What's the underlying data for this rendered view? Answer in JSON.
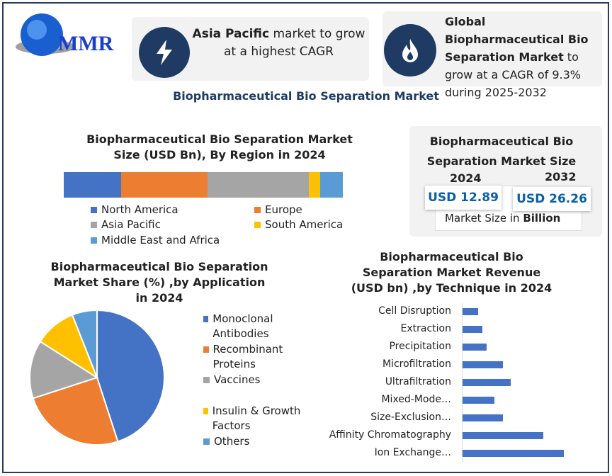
{
  "logo": {
    "text": "MMR"
  },
  "callout1": {
    "bold": "Asia Pacific",
    "rest": " market to grow at a highest CAGR",
    "icon": "lightning-icon"
  },
  "callout2": {
    "bold": "Global Biopharmaceutical Bio Separation Market",
    "rest": " to grow at a CAGR of 9.3% during 2025-2032",
    "icon": "flame-icon"
  },
  "main_title": "Biopharmaceutical Bio Separation Market",
  "size_box": {
    "title": "Biopharmaceutical Bio Separation Market Size",
    "year1": "2024",
    "year2": "2032",
    "value1": "USD 12.89",
    "value2": "USD 26.26",
    "unit_label": "Market Size in ",
    "unit_bold": "Billion"
  },
  "colors": {
    "blue": "#4472c4",
    "orange": "#ed7d31",
    "gray": "#a5a5a5",
    "yellow": "#ffc000",
    "lightblue": "#5b9bd5",
    "navy": "#1f3b64"
  },
  "chart_data": [
    {
      "type": "bar",
      "stacked": true,
      "title": "Biopharmaceutical Bio Separation Market Size (USD Bn), By Region in 2024",
      "categories": [
        "North America",
        "Europe",
        "Asia Pacific",
        "South America",
        "Middle East and Africa"
      ],
      "values": [
        20.6,
        31.0,
        36.3,
        4.0,
        8.1
      ],
      "unit": "% share (estimated)",
      "legend": "bottom"
    },
    {
      "type": "pie",
      "title": "Biopharmaceutical Bio Separation Market Share (%) ,by Application in 2024",
      "categories": [
        "Monoclonal Antibodies",
        "Recombinant Proteins",
        "Vaccines",
        "Insulin & Growth Factors",
        "Others"
      ],
      "values": [
        45,
        25,
        14,
        10,
        6
      ],
      "legend": "right"
    },
    {
      "type": "bar",
      "orientation": "horizontal",
      "title": "Biopharmaceutical Bio Separation Market Revenue (USD bn) ,by Technique in 2024",
      "categories": [
        "Cell Disruption",
        "Extraction",
        "Precipitation",
        "Microfiltration",
        "Ultrafiltration",
        "Mixed-Mode…",
        "Size-Exclusion…",
        "Affinity Chromatography",
        "Ion Exchange…"
      ],
      "values": [
        0.5,
        0.64,
        0.77,
        1.29,
        1.54,
        1.02,
        1.29,
        2.59,
        3.25
      ],
      "xlim": [
        0,
        3.3
      ]
    }
  ]
}
